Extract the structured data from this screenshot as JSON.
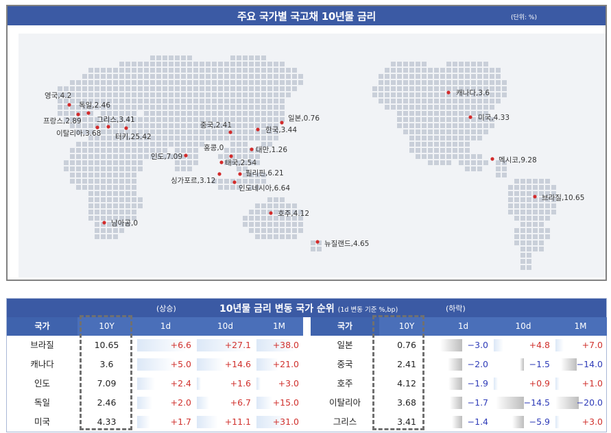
{
  "map": {
    "title": "주요 국가별 국고채 10년물 금리",
    "unit": "(단위: %)",
    "labels": [
      {
        "text": "영국,4.2"
      },
      {
        "text": "독일,2.46"
      },
      {
        "text": "프랑스,2.89"
      },
      {
        "text": "그리스,3.41"
      },
      {
        "text": "이탈리아,3.68"
      },
      {
        "text": "터키,25.42"
      },
      {
        "text": "인도,7.09"
      },
      {
        "text": "중국,2.41"
      },
      {
        "text": "일본,0.76"
      },
      {
        "text": "한국,3.44"
      },
      {
        "text": "홍콩,0"
      },
      {
        "text": "대만,1.26"
      },
      {
        "text": "태국,2.54"
      },
      {
        "text": "필리핀,6.21"
      },
      {
        "text": "싱가포르,3.12"
      },
      {
        "text": "인도네시아,6.64"
      },
      {
        "text": "호주,4.12"
      },
      {
        "text": "뉴질랜드,4.65"
      },
      {
        "text": "남아공,0"
      },
      {
        "text": "캐나다,3.6"
      },
      {
        "text": "미국,4.33"
      },
      {
        "text": "멕시코,9.28"
      },
      {
        "text": "브라질,10.65"
      }
    ],
    "colors": {
      "header": "#3b5aa4",
      "pin": "#d22b2b",
      "land": "#c9cfd9",
      "ocean": "#f1f3f6"
    }
  },
  "rank": {
    "up_label": "(상승)",
    "title": "10년물 금리 변동 국가 순위",
    "subtitle": "(1d 변동 기준 %,bp)",
    "down_label": "(하락)",
    "columns": {
      "name": "국가",
      "y10": "10Y",
      "d1": "1d",
      "d10": "10d",
      "m1": "1M"
    },
    "rising": [
      {
        "name": "브라질",
        "y10": "10.65",
        "d1": "+6.6",
        "d10": "+27.1",
        "m1": "+38.0"
      },
      {
        "name": "캐나다",
        "y10": "3.6",
        "d1": "+5.0",
        "d10": "+14.6",
        "m1": "+21.0"
      },
      {
        "name": "인도",
        "y10": "7.09",
        "d1": "+2.4",
        "d10": "+1.6",
        "m1": "+3.0"
      },
      {
        "name": "독일",
        "y10": "2.46",
        "d1": "+2.0",
        "d10": "+6.7",
        "m1": "+15.0"
      },
      {
        "name": "미국",
        "y10": "4.33",
        "d1": "+1.7",
        "d10": "+11.1",
        "m1": "+31.0"
      }
    ],
    "falling": [
      {
        "name": "일본",
        "y10": "0.76",
        "d1": "−3.0",
        "d10": "+4.8",
        "m1": "+7.0"
      },
      {
        "name": "중국",
        "y10": "2.41",
        "d1": "−2.0",
        "d10": "−1.5",
        "m1": "−14.0"
      },
      {
        "name": "호주",
        "y10": "4.12",
        "d1": "−1.9",
        "d10": "+0.9",
        "m1": "+1.0"
      },
      {
        "name": "이탈리아",
        "y10": "3.68",
        "d1": "−1.7",
        "d10": "−14.5",
        "m1": "−20.0"
      },
      {
        "name": "그리스",
        "y10": "3.41",
        "d1": "−1.4",
        "d10": "−5.9",
        "m1": "+3.0"
      }
    ],
    "colors": {
      "header": "#3b5aa4",
      "col_header": "#4a6fb9",
      "up": "#d0312d",
      "down": "#2e3bb8"
    }
  }
}
